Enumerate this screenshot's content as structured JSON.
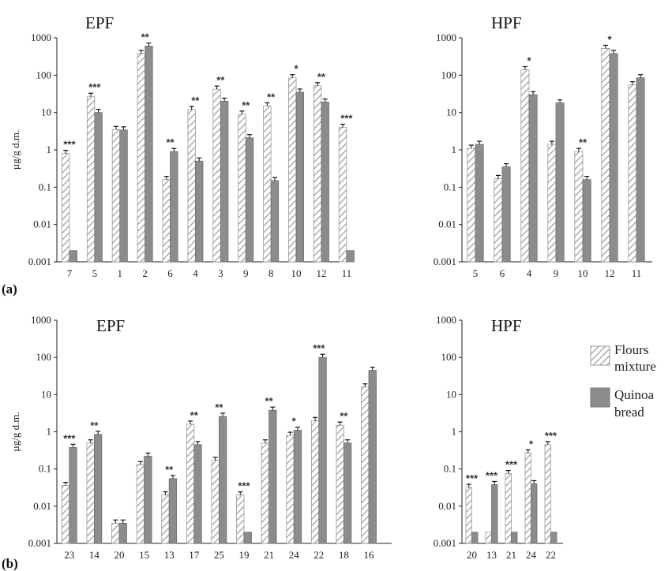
{
  "figure_labels": {
    "a": "(a)",
    "b": "(b)"
  },
  "legend": {
    "flours": [
      "Flours",
      "mixture"
    ],
    "quinoa": [
      "Quinoa",
      "bread"
    ]
  },
  "colors": {
    "hatch_stroke": "#9a9a9a",
    "quinoa_fill": "#8c8c8c",
    "axis": "#222222"
  },
  "chart_data": [
    {
      "type": "bar",
      "scale": "log",
      "title": "EPF",
      "ylabel": "µg/g d.m.",
      "ylim": [
        0.001,
        1000
      ],
      "yticks": [
        "0.001",
        "0.01",
        "0.1",
        "1",
        "10",
        "100",
        "1000"
      ],
      "categories": [
        "7",
        "5",
        "1",
        "2",
        "6",
        "4",
        "3",
        "9",
        "8",
        "10",
        "12",
        "11"
      ],
      "series": [
        {
          "name": "Flours mixture",
          "values": [
            0.8,
            27,
            3.5,
            380,
            0.16,
            12,
            42,
            9,
            15,
            85,
            52,
            4
          ]
        },
        {
          "name": "Quinoa bread",
          "values": [
            0.002,
            10,
            3.4,
            600,
            0.9,
            0.5,
            20,
            2.1,
            0.15,
            35,
            19,
            0.002
          ]
        }
      ],
      "significance": [
        "***",
        "***",
        "",
        "**",
        "**",
        "**",
        "**",
        "**",
        "**",
        "*",
        "**",
        "***"
      ]
    },
    {
      "type": "bar",
      "scale": "log",
      "title": "HPF",
      "ylabel": "",
      "ylim": [
        0.001,
        1000
      ],
      "yticks": [
        "0.001",
        "0.01",
        "0.1",
        "1",
        "10",
        "100",
        "1000"
      ],
      "categories": [
        "5",
        "6",
        "4",
        "9",
        "10",
        "12",
        "11"
      ],
      "series": [
        {
          "name": "Flours mixture",
          "values": [
            1.1,
            0.17,
            140,
            1.4,
            0.9,
            520,
            55
          ]
        },
        {
          "name": "Quinoa bread",
          "values": [
            1.4,
            0.35,
            30,
            18,
            0.16,
            380,
            85
          ]
        }
      ],
      "significance": [
        "",
        "",
        "*",
        "",
        "**",
        "*",
        ""
      ]
    },
    {
      "type": "bar",
      "scale": "log",
      "title": "EPF",
      "ylabel": "µg/g d.m.",
      "ylim": [
        0.001,
        1000
      ],
      "yticks": [
        "0.001",
        "0.01",
        "0.1",
        "1",
        "10",
        "100",
        "1000"
      ],
      "categories": [
        "23",
        "14",
        "20",
        "15",
        "13",
        "17",
        "25",
        "19",
        "21",
        "24",
        "22",
        "18",
        "16"
      ],
      "series": [
        {
          "name": "Flours mixture",
          "values": [
            0.036,
            0.5,
            0.0035,
            0.13,
            0.02,
            1.6,
            0.17,
            0.02,
            0.5,
            0.8,
            2,
            1.5,
            16
          ]
        },
        {
          "name": "Quinoa bread",
          "values": [
            0.38,
            0.85,
            0.0035,
            0.22,
            0.055,
            0.45,
            2.6,
            0.002,
            3.8,
            1.1,
            100,
            0.5,
            45
          ]
        }
      ],
      "significance": [
        "***",
        "**",
        "",
        "",
        "**",
        "**",
        "**",
        "***",
        "**",
        "*",
        "***",
        "**",
        ""
      ]
    },
    {
      "type": "bar",
      "scale": "log",
      "title": "HPF",
      "ylabel": "",
      "ylim": [
        0.001,
        1000
      ],
      "yticks": [
        "0.001",
        "0.01",
        "0.1",
        "1",
        "10",
        "100",
        "1000"
      ],
      "categories": [
        "20",
        "13",
        "21",
        "24",
        "22"
      ],
      "series": [
        {
          "name": "Flours mixture",
          "values": [
            0.032,
            0.002,
            0.075,
            0.27,
            0.45
          ]
        },
        {
          "name": "Quinoa bread",
          "values": [
            0.002,
            0.038,
            0.002,
            0.04,
            0.002
          ]
        }
      ],
      "significance": [
        "***",
        "***",
        "***",
        "*",
        "***"
      ]
    }
  ]
}
